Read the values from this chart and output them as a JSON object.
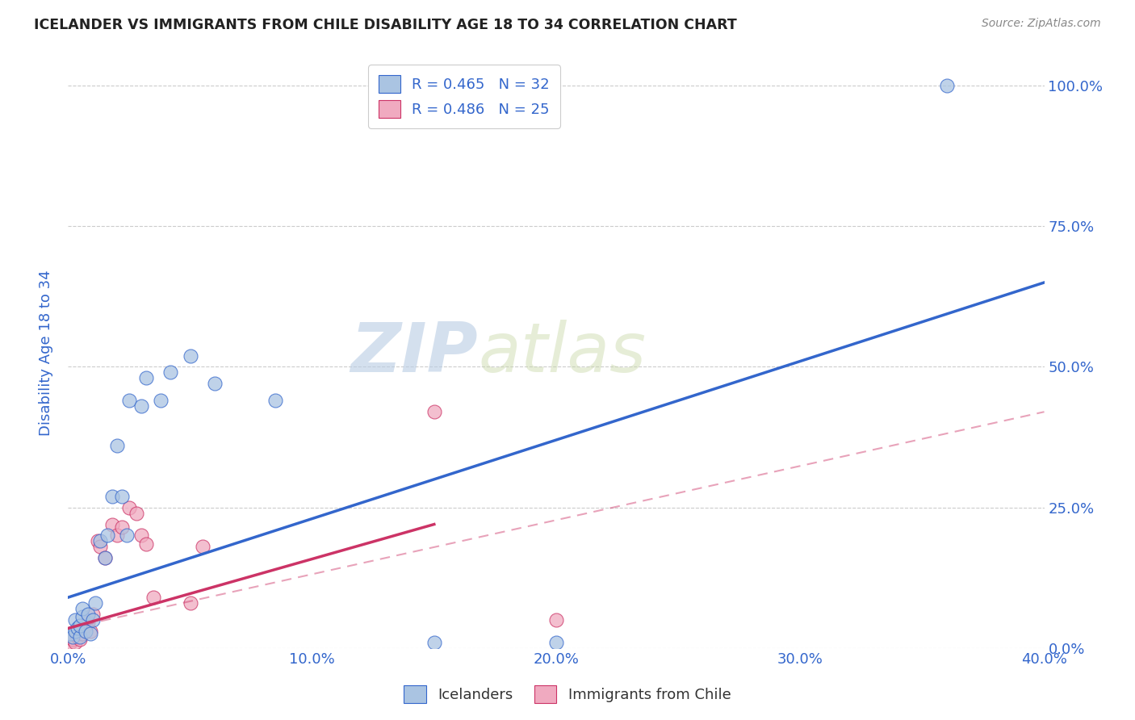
{
  "title": "ICELANDER VS IMMIGRANTS FROM CHILE DISABILITY AGE 18 TO 34 CORRELATION CHART",
  "source": "Source: ZipAtlas.com",
  "ylabel_label": "Disability Age 18 to 34",
  "xlim": [
    0.0,
    0.4
  ],
  "ylim": [
    0.0,
    1.05
  ],
  "x_ticks": [
    0.0,
    0.1,
    0.2,
    0.3,
    0.4
  ],
  "x_tick_labels": [
    "0.0%",
    "10.0%",
    "20.0%",
    "30.0%",
    "40.0%"
  ],
  "y_ticks": [
    0.0,
    0.25,
    0.5,
    0.75,
    1.0
  ],
  "y_tick_labels_right": [
    "0.0%",
    "25.0%",
    "50.0%",
    "75.0%",
    "100.0%"
  ],
  "icelander_color": "#aac4e2",
  "chile_color": "#f0aac0",
  "icelander_line_color": "#3366cc",
  "chile_line_color": "#cc3366",
  "watermark_zip": "ZIP",
  "watermark_atlas": "atlas",
  "background_color": "#ffffff",
  "grid_color": "#cccccc",
  "title_color": "#222222",
  "axis_label_color": "#3366cc",
  "tick_label_color": "#3366cc",
  "icelander_points_x": [
    0.001,
    0.002,
    0.003,
    0.003,
    0.004,
    0.005,
    0.005,
    0.006,
    0.006,
    0.007,
    0.008,
    0.009,
    0.01,
    0.011,
    0.013,
    0.015,
    0.016,
    0.018,
    0.02,
    0.022,
    0.024,
    0.025,
    0.03,
    0.032,
    0.038,
    0.042,
    0.05,
    0.06,
    0.085,
    0.15,
    0.2,
    0.36
  ],
  "icelander_points_y": [
    0.025,
    0.02,
    0.03,
    0.05,
    0.035,
    0.02,
    0.04,
    0.055,
    0.07,
    0.03,
    0.06,
    0.025,
    0.05,
    0.08,
    0.19,
    0.16,
    0.2,
    0.27,
    0.36,
    0.27,
    0.2,
    0.44,
    0.43,
    0.48,
    0.44,
    0.49,
    0.52,
    0.47,
    0.44,
    0.01,
    0.01,
    1.0
  ],
  "chile_points_x": [
    0.001,
    0.002,
    0.003,
    0.004,
    0.005,
    0.006,
    0.007,
    0.008,
    0.009,
    0.01,
    0.012,
    0.013,
    0.015,
    0.018,
    0.02,
    0.022,
    0.025,
    0.028,
    0.03,
    0.032,
    0.035,
    0.05,
    0.055,
    0.15,
    0.2
  ],
  "chile_points_y": [
    0.01,
    0.015,
    0.01,
    0.02,
    0.015,
    0.025,
    0.04,
    0.045,
    0.03,
    0.06,
    0.19,
    0.18,
    0.16,
    0.22,
    0.2,
    0.215,
    0.25,
    0.24,
    0.2,
    0.185,
    0.09,
    0.08,
    0.18,
    0.42,
    0.05
  ],
  "ice_line_x0": 0.0,
  "ice_line_y0": 0.09,
  "ice_line_x1": 0.4,
  "ice_line_y1": 0.65,
  "chile_line_solid_x0": 0.0,
  "chile_line_solid_y0": 0.035,
  "chile_line_solid_x1": 0.15,
  "chile_line_solid_y1": 0.22,
  "chile_line_dash_x0": 0.0,
  "chile_line_dash_y0": 0.035,
  "chile_line_dash_x1": 0.4,
  "chile_line_dash_y1": 0.42
}
